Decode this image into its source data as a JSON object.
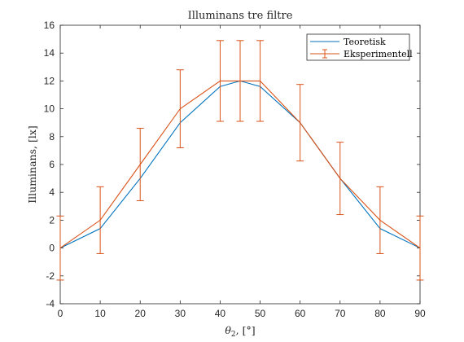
{
  "chart_data": {
    "type": "line",
    "title": "Illuminans tre filtre",
    "xlabel_base": "θ",
    "xlabel_sub": "2",
    "xlabel_unit": ", [°]",
    "ylabel": "Illuminans, [lx]",
    "xlim": [
      0,
      90
    ],
    "ylim": [
      -4,
      16
    ],
    "xticks": [
      0,
      10,
      20,
      30,
      40,
      50,
      60,
      70,
      80,
      90
    ],
    "yticks": [
      -4,
      -2,
      0,
      2,
      4,
      6,
      8,
      10,
      12,
      14,
      16
    ],
    "grid": false,
    "legend_position": "top-right",
    "series": [
      {
        "name": "Teoretisk",
        "color": "#0072BD",
        "x": [
          0,
          10,
          20,
          30,
          40,
          45,
          50,
          60,
          70,
          80,
          90
        ],
        "y": [
          0,
          1.4,
          5.0,
          9.0,
          11.6,
          12.0,
          11.6,
          9.0,
          5.0,
          1.4,
          0
        ]
      },
      {
        "name": "Eksperimentell",
        "color": "#D95319",
        "errorbars": true,
        "x": [
          0,
          10,
          20,
          30,
          40,
          45,
          50,
          60,
          70,
          80,
          90
        ],
        "y": [
          0,
          2.0,
          6.0,
          10.0,
          12.0,
          12.0,
          12.0,
          9.0,
          5.0,
          2.0,
          0
        ],
        "err": [
          2.3,
          2.4,
          2.6,
          2.8,
          2.9,
          2.9,
          2.9,
          2.75,
          2.6,
          2.4,
          2.3
        ]
      }
    ]
  }
}
